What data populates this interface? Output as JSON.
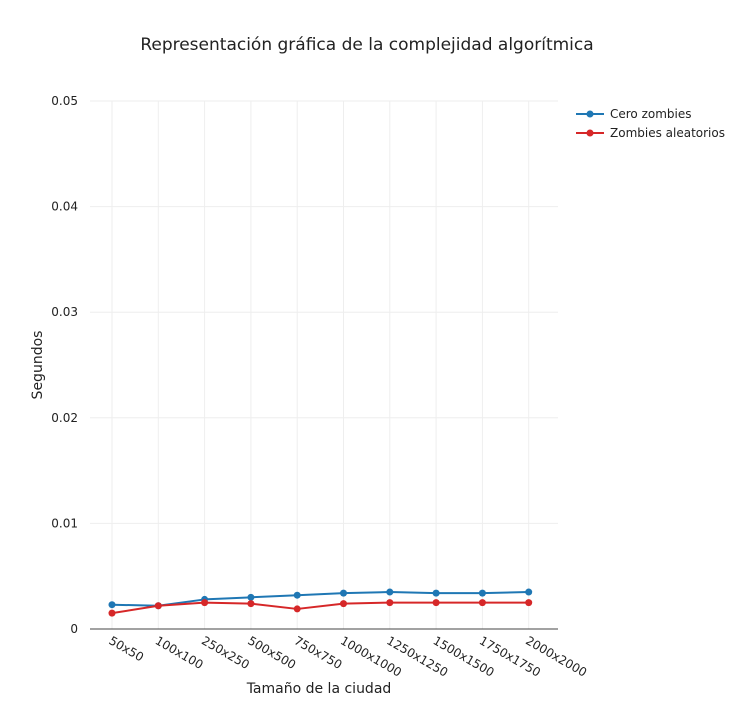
{
  "chart_data": {
    "type": "line",
    "title": "Representación gráfica de la complejidad algorítmica",
    "xlabel": "Tamaño de la ciudad",
    "ylabel": "Segundos",
    "categories": [
      "50x50",
      "100x100",
      "250x250",
      "500x500",
      "750x750",
      "1000x1000",
      "1250x1250",
      "1500x1500",
      "1750x1750",
      "2000x2000"
    ],
    "ylim": [
      0,
      0.05
    ],
    "yticks": [
      0,
      0.01,
      0.02,
      0.03,
      0.04,
      0.05
    ],
    "ytick_labels": [
      "0",
      "0.01",
      "0.02",
      "0.03",
      "0.04",
      "0.05"
    ],
    "grid": true,
    "legend_position": "top-right",
    "series": [
      {
        "name": "Cero zombies",
        "color": "#1f77b4",
        "values": [
          0.0023,
          0.0022,
          0.0028,
          0.003,
          0.0032,
          0.0034,
          0.0035,
          0.0034,
          0.0034,
          0.0035
        ]
      },
      {
        "name": "Zombies aleatorios",
        "color": "#d62728",
        "values": [
          0.0015,
          0.0022,
          0.0025,
          0.0024,
          0.0019,
          0.0024,
          0.0025,
          0.0025,
          0.0025,
          0.0025
        ]
      }
    ]
  }
}
